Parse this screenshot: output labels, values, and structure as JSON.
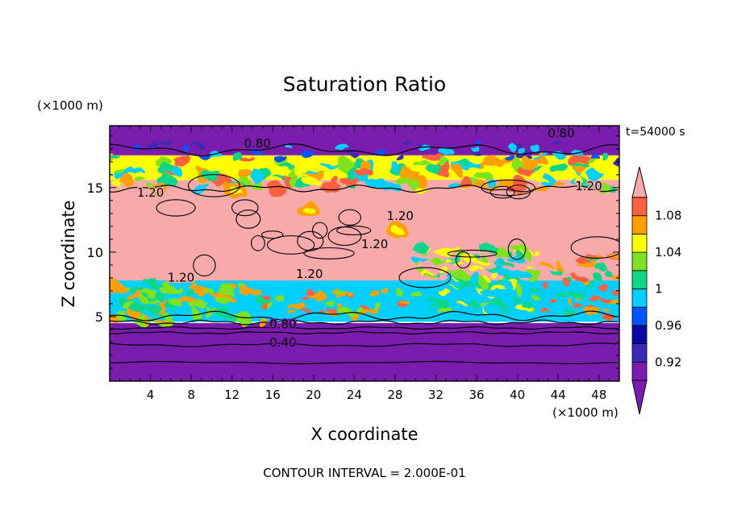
{
  "chart_data": {
    "type": "heatmap",
    "title": "Saturation Ratio",
    "xlabel": "X coordinate",
    "ylabel": "Z coordinate",
    "x_unit": "(×1000 m)",
    "y_unit": "(×1000 m)",
    "time_label": "t=54000 s",
    "footer": "CONTOUR INTERVAL = 2.000E-01",
    "xlim": [
      0,
      50
    ],
    "ylim": [
      0,
      19.8
    ],
    "x_ticks": [
      4,
      8,
      12,
      16,
      20,
      24,
      28,
      32,
      36,
      40,
      44,
      48
    ],
    "y_ticks": [
      5,
      10,
      15
    ],
    "colorbar": {
      "levels": [
        0.9,
        0.92,
        0.94,
        0.96,
        0.98,
        1.0,
        1.02,
        1.04,
        1.06,
        1.08,
        1.1
      ],
      "labels": [
        "0.92",
        "0.96",
        "1",
        "1.04",
        "1.08"
      ],
      "label_values": [
        0.92,
        0.96,
        1.0,
        1.04,
        1.08
      ],
      "colors": [
        "#7a1dae",
        "#3b2ab8",
        "#0a0aa6",
        "#0055ff",
        "#00cfff",
        "#10d68a",
        "#7ee21e",
        "#ffff00",
        "#ffa000",
        "#ff6040",
        "#ff2a2a"
      ],
      "under_color": "#7a1dae",
      "over_color": "#f8a9a9"
    },
    "regions": [
      {
        "name": "upper-dry",
        "x": [
          0,
          50
        ],
        "z": [
          17.5,
          19.8
        ],
        "level": 0.9
      },
      {
        "name": "upper-transition",
        "x": [
          0,
          50
        ],
        "z": [
          15.6,
          17.5
        ],
        "level": 1.04
      },
      {
        "name": "supersaturated-core",
        "x": [
          0,
          50
        ],
        "z": [
          5.0,
          15.6
        ],
        "level": 1.1
      },
      {
        "name": "mid-level-cloud-band",
        "x": [
          0,
          50
        ],
        "z": [
          4.6,
          7.8
        ],
        "level": 0.98
      },
      {
        "name": "lower-dry",
        "x": [
          0,
          50
        ],
        "z": [
          0,
          4.5
        ],
        "level": 0.9
      }
    ],
    "contour_labels": [
      {
        "text": "0.80",
        "x": 14.5,
        "z": 18.1
      },
      {
        "text": "0.80",
        "x": 44.3,
        "z": 18.9
      },
      {
        "text": "1.20",
        "x": 4.0,
        "z": 14.3
      },
      {
        "text": "1.20",
        "x": 47.0,
        "z": 14.8
      },
      {
        "text": "1.20",
        "x": 28.5,
        "z": 12.5
      },
      {
        "text": "1.20",
        "x": 26.0,
        "z": 10.3
      },
      {
        "text": "1.20",
        "x": 7.0,
        "z": 7.7
      },
      {
        "text": "1.20",
        "x": 19.6,
        "z": 8.0
      },
      {
        "text": "0.80",
        "x": 17.0,
        "z": 4.1
      },
      {
        "text": "0.40",
        "x": 17.0,
        "z": 2.7
      }
    ]
  }
}
